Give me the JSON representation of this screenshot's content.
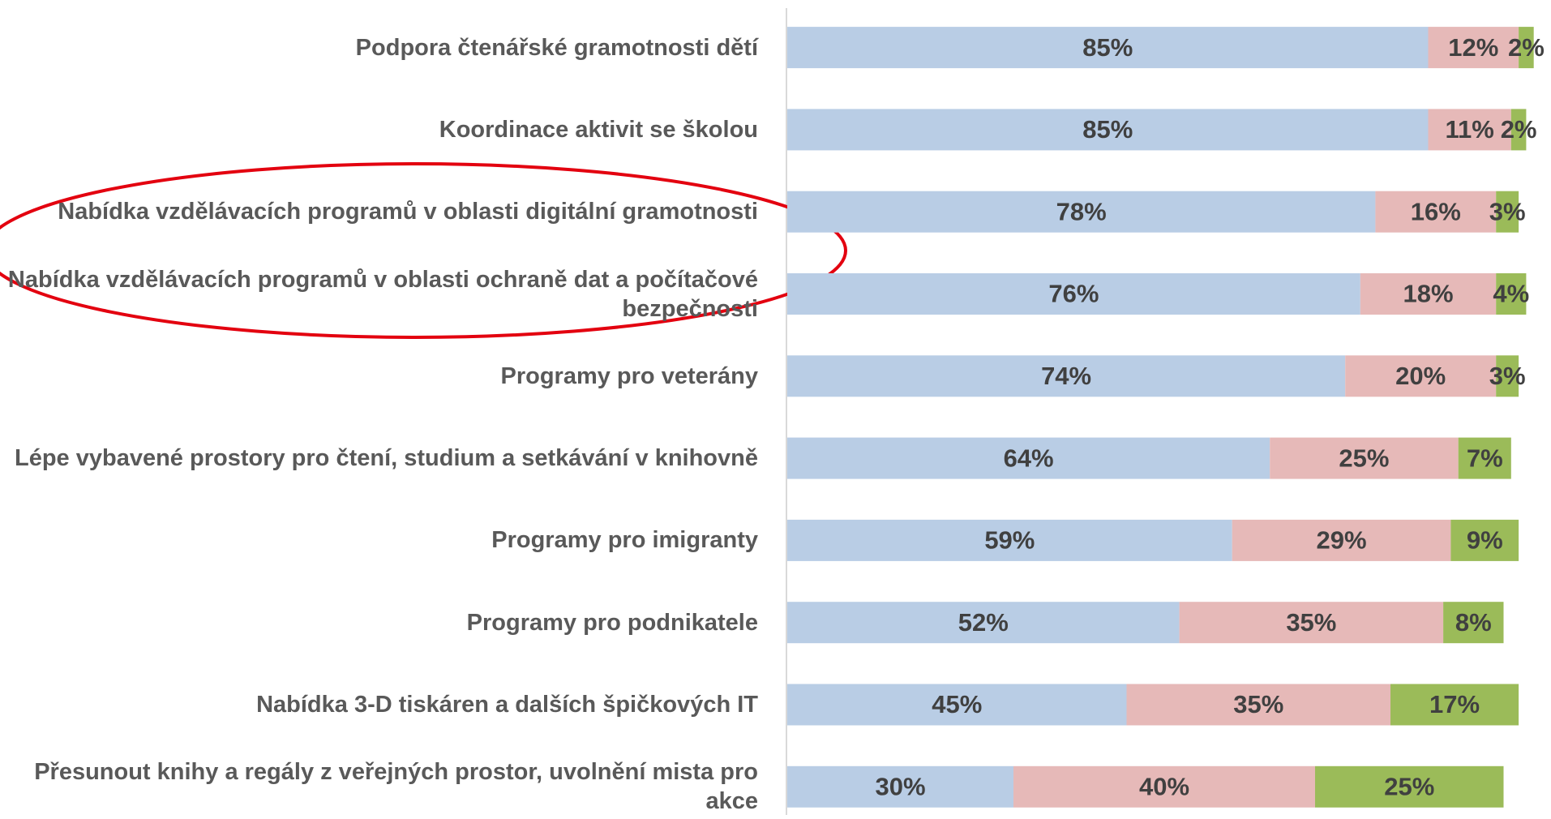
{
  "chart_data": {
    "type": "bar",
    "orientation": "horizontal",
    "stacked": true,
    "categories": [
      "Podpora čtenářské gramotnosti dětí",
      "Koordinace aktivit se školou",
      "Nabídka vzdělávacích programů v oblasti digitální gramotnosti",
      "Nabídka vzdělávacích programů v oblasti ochraně dat a počítačové bezpečnosti",
      "Programy pro veterány",
      "Lépe vybavené prostory pro čtení, studium a setkávání v knihovně",
      "Programy pro imigranty",
      "Programy pro podnikatele",
      "Nabídka 3-D tiskáren a dalších špičkových IT",
      "Přesunout knihy a regály z veřejných prostor, uvolnění mista pro akce"
    ],
    "xlim": [
      0,
      100
    ],
    "series": [
      {
        "color": "#b9cde5",
        "values": [
          85,
          85,
          78,
          76,
          74,
          64,
          59,
          52,
          45,
          30
        ],
        "value_labels": [
          "85%",
          "85%",
          "78%",
          "76%",
          "74%",
          "64%",
          "59%",
          "52%",
          "45%",
          "30%"
        ]
      },
      {
        "color": "#e6b9b8",
        "values": [
          12,
          11,
          16,
          18,
          20,
          25,
          29,
          35,
          35,
          40
        ],
        "value_labels": [
          "12%",
          "11%",
          "16%",
          "18%",
          "20%",
          "25%",
          "29%",
          "35%",
          "35%",
          "40%"
        ]
      },
      {
        "color": "#9bbb59",
        "values": [
          2,
          2,
          3,
          4,
          3,
          7,
          9,
          8,
          17,
          25
        ],
        "value_labels": [
          "2%",
          "2%",
          "3%",
          "4%",
          "3%",
          "7%",
          "9%",
          "8%",
          "17%",
          "25%"
        ]
      }
    ]
  }
}
